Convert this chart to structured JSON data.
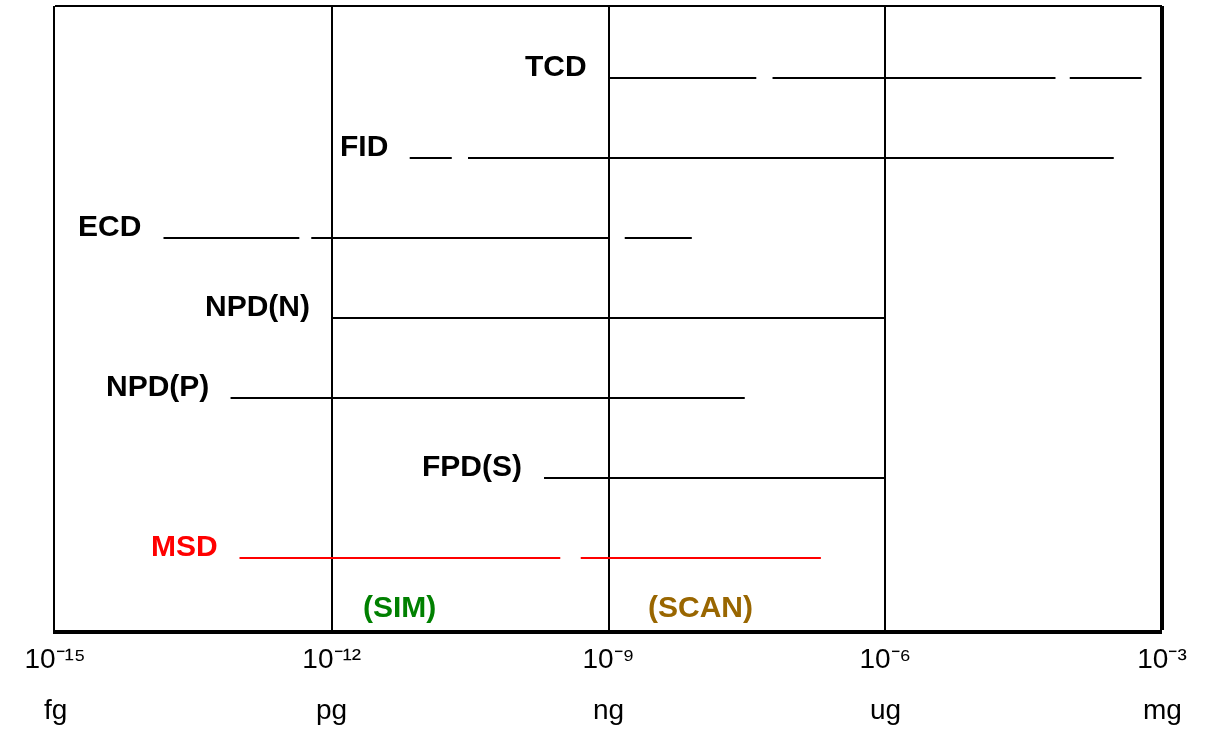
{
  "chart_data": {
    "type": "bar",
    "orientation": "horizontal",
    "log": "x",
    "grid": "x",
    "tick_labels": "x",
    "categories": [
      "TCD",
      "FID",
      "ECD",
      "NPD(N)",
      "NPD(P)",
      "FPD(S)",
      "MSD"
    ],
    "xlim": [
      1e-15,
      0.001
    ],
    "xticks": [
      {
        "value": 1e-15,
        "label": "10⁻¹⁵"
      },
      {
        "value": 1e-12,
        "label": "10⁻¹²"
      },
      {
        "value": 1e-09,
        "label": "10⁻⁹"
      },
      {
        "value": 1e-06,
        "label": "10⁻⁶"
      },
      {
        "value": 0.001,
        "label": "10⁻³"
      }
    ],
    "series": [
      {
        "base": [
          1e-09,
          7e-12,
          1.5e-14,
          1e-12,
          8e-14,
          2e-10,
          1e-13
        ],
        "values": [
          3.9e-08,
          1.3e-11,
          4.3e-13,
          1e-06,
          3e-08,
          1e-06,
          3e-10
        ],
        "colors": [
          "#000000",
          "#000000",
          "#000000",
          "#000000",
          "#000000",
          "#000000",
          "#ff0000"
        ]
      },
      {
        "base": [
          6e-08,
          3e-11,
          6e-13,
          null,
          null,
          null,
          5e-10
        ],
        "values": [
          7e-05,
          0.0003,
          1e-09,
          null,
          null,
          null,
          2e-07
        ],
        "colors": [
          "#000000",
          "#000000",
          "#000000",
          null,
          null,
          null,
          "#ff0000"
        ]
      },
      {
        "base": [
          0.0001,
          null,
          1.5e-09,
          null,
          null,
          null,
          null
        ],
        "values": [
          0.0005,
          null,
          6.5e-09,
          null,
          null,
          null,
          null
        ],
        "colors": [
          "#000000",
          null,
          "#000000",
          null,
          null,
          null,
          null
        ]
      }
    ],
    "annotations": [
      "(SIM)",
      "(SCAN)",
      "fg",
      "pg",
      "ng",
      "ug",
      "mg"
    ]
  }
}
